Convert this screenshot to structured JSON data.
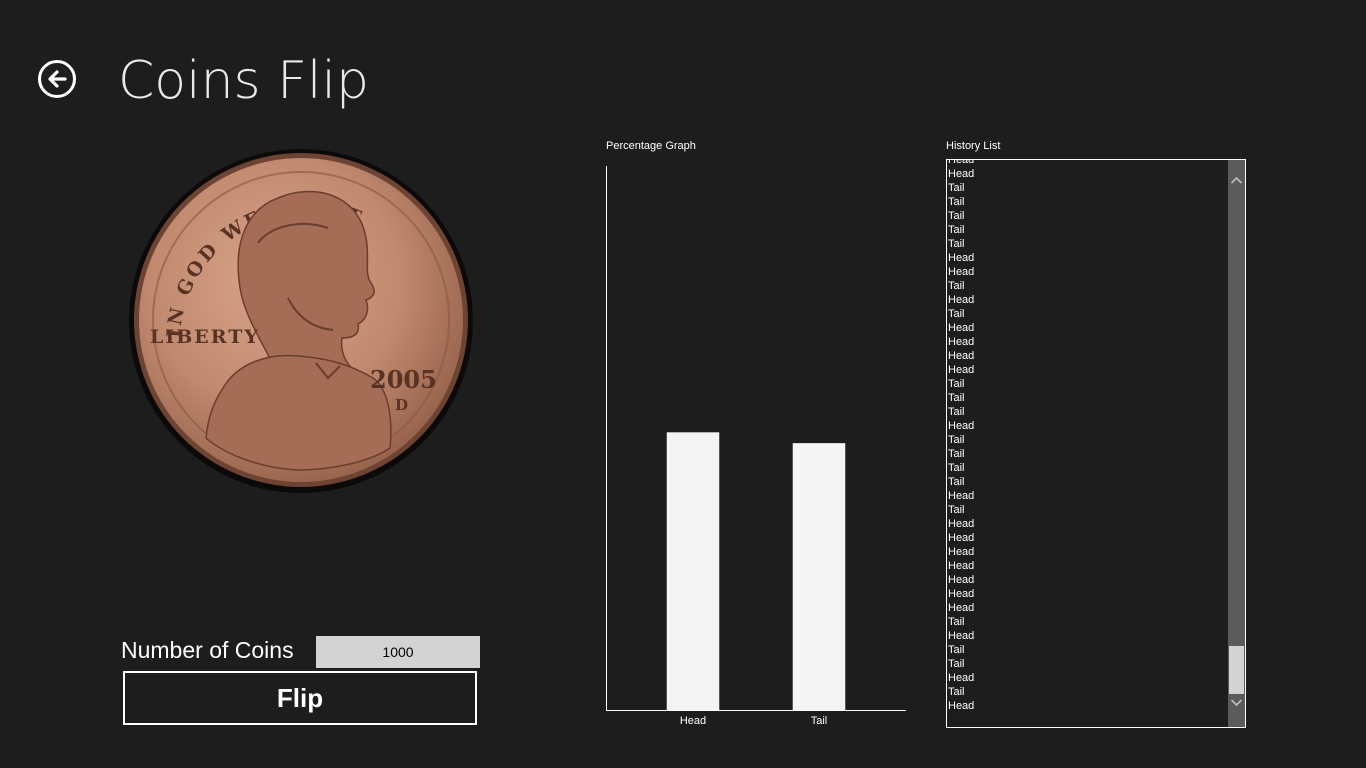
{
  "header": {
    "title": "Coins Flip"
  },
  "icons": {
    "back": "back-arrow-icon",
    "coin": "coin-icon"
  },
  "coin": {
    "motto": "IN GOD WE TRUST",
    "liberty": "LIBERTY",
    "year": "2005",
    "mint": "D"
  },
  "controls": {
    "coins_label": "Number of Coins",
    "coins_value": "1000",
    "flip_label": "Flip"
  },
  "graph": {
    "title": "Percentage Graph"
  },
  "chart_data": {
    "type": "bar",
    "categories": [
      "Head",
      "Tail"
    ],
    "values": [
      51,
      49
    ],
    "ylim": [
      0,
      100
    ],
    "grid": false,
    "bar_color": "#f4f4f4",
    "axis_color": "#ffffff"
  },
  "history": {
    "title": "History List",
    "items": [
      "Head",
      "Head",
      "Tail",
      "Tail",
      "Tail",
      "Tail",
      "Tail",
      "Head",
      "Head",
      "Tail",
      "Head",
      "Tail",
      "Head",
      "Head",
      "Head",
      "Head",
      "Tail",
      "Tail",
      "Tail",
      "Head",
      "Tail",
      "Tail",
      "Tail",
      "Tail",
      "Head",
      "Tail",
      "Head",
      "Head",
      "Head",
      "Head",
      "Head",
      "Head",
      "Head",
      "Tail",
      "Head",
      "Tail",
      "Tail",
      "Head",
      "Tail",
      "Head"
    ]
  },
  "colors": {
    "background": "#1d1d1d",
    "input_bg": "#d3d3d3",
    "scrollbar": "#5b5b5b",
    "coin_copper": "#c18a6f"
  }
}
